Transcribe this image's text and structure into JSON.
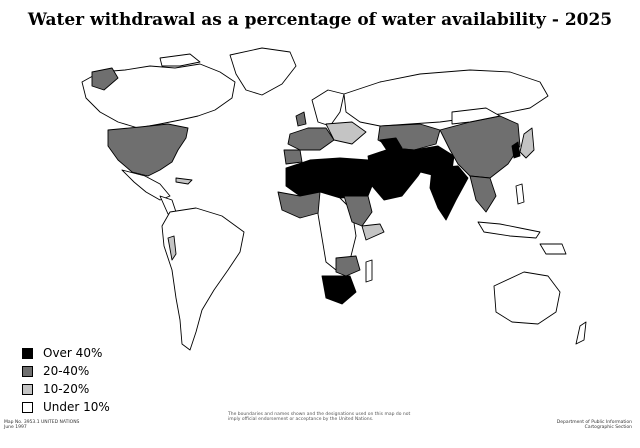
{
  "title": "Water withdrawal as a percentage of water availability - 2025",
  "colors": {
    "over40": "#000000",
    "p20_40": "#6f6f6f",
    "p10_20": "#c4c4c4",
    "under10": "#ffffff"
  },
  "legend": [
    {
      "label": "Over 40%",
      "color_key": "over40"
    },
    {
      "label": "20-40%",
      "color_key": "p20_40"
    },
    {
      "label": "10-20%",
      "color_key": "p10_20"
    },
    {
      "label": "Under 10%",
      "color_key": "under10"
    }
  ],
  "footnotes": {
    "map_id": "Map No. 3953.1 UNITED NATIONS\nJune 1997",
    "department": "Department of Public Information\nCartographic Section",
    "note": "The boundaries and names shown and the designations used on this map do not imply official endorsement or acceptance by the United Nations."
  }
}
